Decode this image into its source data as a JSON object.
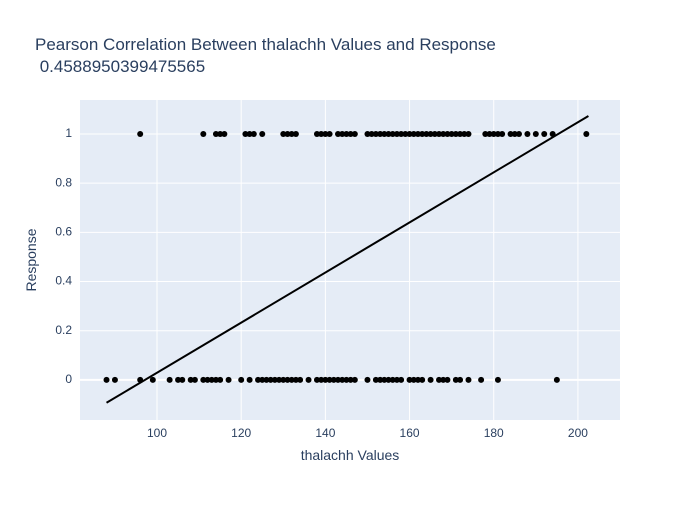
{
  "chart_data": {
    "type": "scatter",
    "title": "Pearson Correlation Between thalachh Values and Response",
    "subtitle": " 0.4588950399475565",
    "x_label": "thalachh Values",
    "y_label": "Response",
    "xlim": [
      81.7,
      210
    ],
    "ylim": [
      -0.163,
      1.138
    ],
    "xticks": [
      100,
      120,
      140,
      160,
      180,
      200
    ],
    "yticks": [
      0,
      0.2,
      0.4,
      0.6,
      0.8,
      1
    ],
    "grid": true,
    "series": [
      {
        "mode": "markers",
        "color": "#000000",
        "x": [
          96,
          111,
          114,
          115,
          116,
          121,
          122,
          123,
          125,
          130,
          131,
          132,
          133,
          138,
          139,
          140,
          141,
          143,
          144,
          145,
          146,
          147,
          150,
          151,
          152,
          153,
          154,
          155,
          156,
          157,
          158,
          159,
          160,
          161,
          162,
          163,
          164,
          165,
          166,
          167,
          168,
          169,
          170,
          171,
          172,
          173,
          174,
          178,
          179,
          180,
          181,
          182,
          184,
          185,
          186,
          188,
          190,
          192,
          194,
          202,
          88,
          90,
          96,
          99,
          103,
          105,
          106,
          108,
          109,
          111,
          112,
          113,
          114,
          115,
          117,
          120,
          122,
          124,
          125,
          126,
          127,
          128,
          129,
          130,
          131,
          132,
          133,
          134,
          136,
          138,
          139,
          140,
          141,
          142,
          143,
          144,
          145,
          146,
          147,
          150,
          152,
          153,
          154,
          155,
          156,
          157,
          158,
          160,
          161,
          162,
          163,
          165,
          167,
          168,
          169,
          171,
          172,
          174,
          177,
          181,
          195
        ],
        "y": [
          1,
          1,
          1,
          1,
          1,
          1,
          1,
          1,
          1,
          1,
          1,
          1,
          1,
          1,
          1,
          1,
          1,
          1,
          1,
          1,
          1,
          1,
          1,
          1,
          1,
          1,
          1,
          1,
          1,
          1,
          1,
          1,
          1,
          1,
          1,
          1,
          1,
          1,
          1,
          1,
          1,
          1,
          1,
          1,
          1,
          1,
          1,
          1,
          1,
          1,
          1,
          1,
          1,
          1,
          1,
          1,
          1,
          1,
          1,
          1,
          0,
          0,
          0,
          0,
          0,
          0,
          0,
          0,
          0,
          0,
          0,
          0,
          0,
          0,
          0,
          0,
          0,
          0,
          0,
          0,
          0,
          0,
          0,
          0,
          0,
          0,
          0,
          0,
          0,
          0,
          0,
          0,
          0,
          0,
          0,
          0,
          0,
          0,
          0,
          0,
          0,
          0,
          0,
          0,
          0,
          0,
          0,
          0,
          0,
          0,
          0,
          0,
          0,
          0,
          0,
          0,
          0,
          0,
          0,
          0,
          0
        ]
      },
      {
        "mode": "lines",
        "color": "#000000",
        "x": [
          88,
          202.5
        ],
        "y": [
          -0.093,
          1.073
        ]
      }
    ]
  }
}
